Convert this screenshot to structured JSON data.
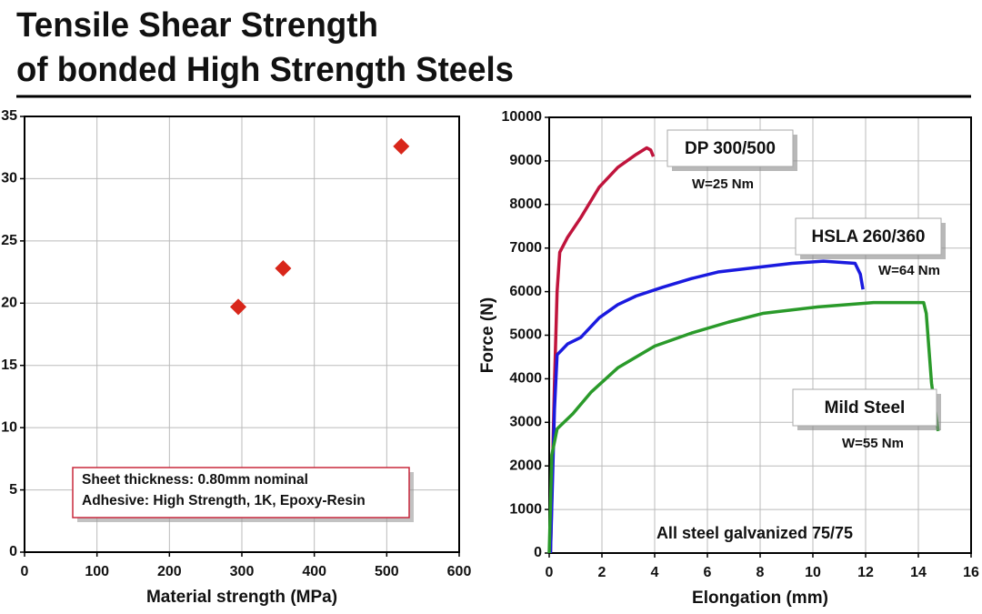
{
  "header": {
    "title_lines": [
      "Tensile Shear Strength",
      "of bonded High Strength Steels"
    ]
  },
  "chart_data": [
    {
      "type": "scatter",
      "xlabel": "Material strength (MPa)",
      "x": [
        295,
        357,
        520
      ],
      "values": [
        19.7,
        22.8,
        32.6
      ],
      "color": "#d8261a",
      "xlim": [
        0,
        600
      ],
      "xticks": [
        0,
        100,
        200,
        300,
        400,
        500,
        600
      ],
      "ylim": [
        0,
        35
      ],
      "yticks": [
        0,
        5,
        10,
        15,
        20,
        25,
        30,
        35
      ],
      "grid": true,
      "annotations": [
        "Sheet thickness: 0.80mm nominal",
        "Adhesive: High Strength, 1K, Epoxy-Resin"
      ]
    },
    {
      "type": "line",
      "xlabel": "Elongation (mm)",
      "ylabel": "Force (N)",
      "series": [
        {
          "name": "DP 300/500",
          "color": "#c0143c",
          "x": [
            0.05,
            0.2,
            0.3,
            0.4,
            0.7,
            1.2,
            1.9,
            2.6,
            3.3,
            3.7,
            3.85,
            3.95
          ],
          "values": [
            0,
            3900,
            6000,
            6900,
            7250,
            7700,
            8400,
            8850,
            9150,
            9300,
            9250,
            9100
          ]
        },
        {
          "name": "HSLA 260/360",
          "color": "#1a1adf",
          "x": [
            0.05,
            0.2,
            0.3,
            0.7,
            1.2,
            1.9,
            2.6,
            3.3,
            4.3,
            5.4,
            6.4,
            7.8,
            9.2,
            10.4,
            11.6,
            11.8,
            11.9
          ],
          "values": [
            0,
            3300,
            4550,
            4800,
            4950,
            5400,
            5700,
            5900,
            6100,
            6300,
            6450,
            6550,
            6650,
            6700,
            6650,
            6400,
            6050
          ]
        },
        {
          "name": "Mild Steel",
          "color": "#2a9a2a",
          "x": [
            0,
            0.1,
            0.3,
            0.9,
            1.6,
            2.6,
            4,
            5.4,
            6.8,
            8.1,
            10.2,
            12.3,
            14.2,
            14.3,
            14.5,
            14.75
          ],
          "values": [
            0,
            2250,
            2850,
            3200,
            3700,
            4250,
            4750,
            5050,
            5300,
            5500,
            5650,
            5750,
            5750,
            5500,
            3900,
            2800
          ]
        }
      ],
      "xlim": [
        0,
        16
      ],
      "xticks": [
        0,
        2,
        4,
        6,
        8,
        10,
        12,
        14,
        16
      ],
      "ylim": [
        0,
        10000
      ],
      "yticks": [
        0,
        1000,
        2000,
        3000,
        4000,
        5000,
        6000,
        7000,
        8000,
        9000,
        10000
      ],
      "grid": true,
      "annotations": [
        "W=25 Nm",
        "W=64 Nm",
        "W=55 Nm",
        "All steel galvanized 75/75"
      ]
    }
  ]
}
